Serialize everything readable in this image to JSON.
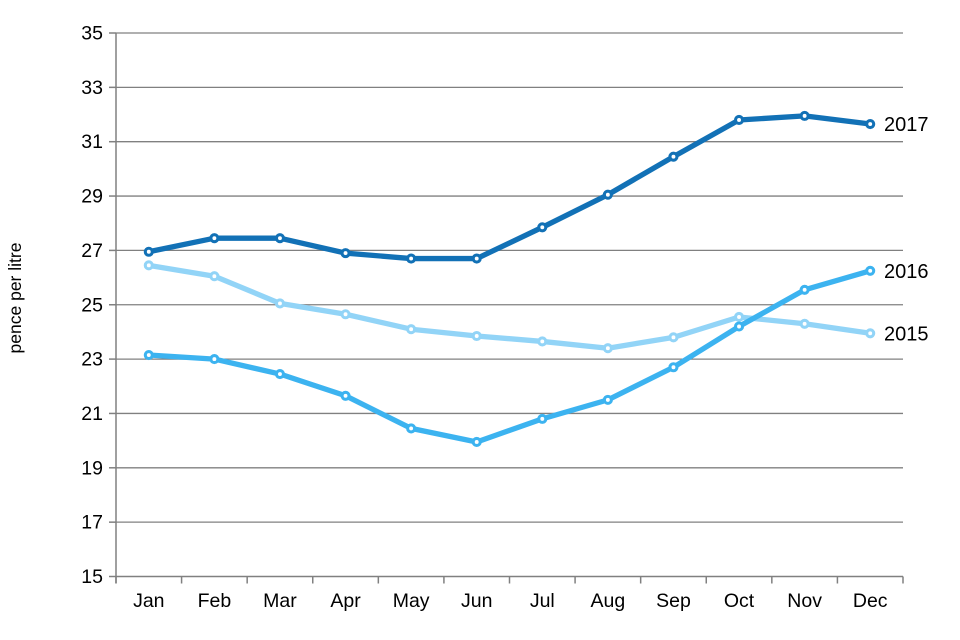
{
  "chart_data": {
    "type": "line",
    "title": "",
    "xlabel": "",
    "ylabel": "pence per litre",
    "categories": [
      "Jan",
      "Feb",
      "Mar",
      "Apr",
      "May",
      "Jun",
      "Jul",
      "Aug",
      "Sep",
      "Oct",
      "Nov",
      "Dec"
    ],
    "ylim": [
      15,
      35
    ],
    "yticks": [
      15,
      17,
      19,
      21,
      23,
      25,
      27,
      29,
      31,
      33,
      35
    ],
    "grid": true,
    "legend_position": "end-of-line-labels-right",
    "series": [
      {
        "name": "2017",
        "color": "#1271b6",
        "values": [
          26.95,
          27.45,
          27.45,
          26.9,
          26.7,
          26.7,
          27.85,
          29.05,
          30.45,
          31.8,
          31.95,
          31.65
        ]
      },
      {
        "name": "2016",
        "color": "#3cb3f0",
        "values": [
          23.15,
          23.0,
          22.45,
          21.65,
          20.45,
          19.95,
          20.8,
          21.5,
          22.7,
          24.2,
          25.55,
          26.25
        ]
      },
      {
        "name": "2015",
        "color": "#92d4f7",
        "values": [
          26.45,
          26.05,
          25.05,
          24.65,
          24.1,
          23.85,
          23.65,
          23.4,
          23.8,
          24.55,
          24.3,
          23.95
        ]
      }
    ]
  },
  "colors": {
    "background": "#ffffff",
    "grid": "#808080",
    "axis": "#808080",
    "text": "#000000",
    "marker_fill": "#ffffff"
  }
}
